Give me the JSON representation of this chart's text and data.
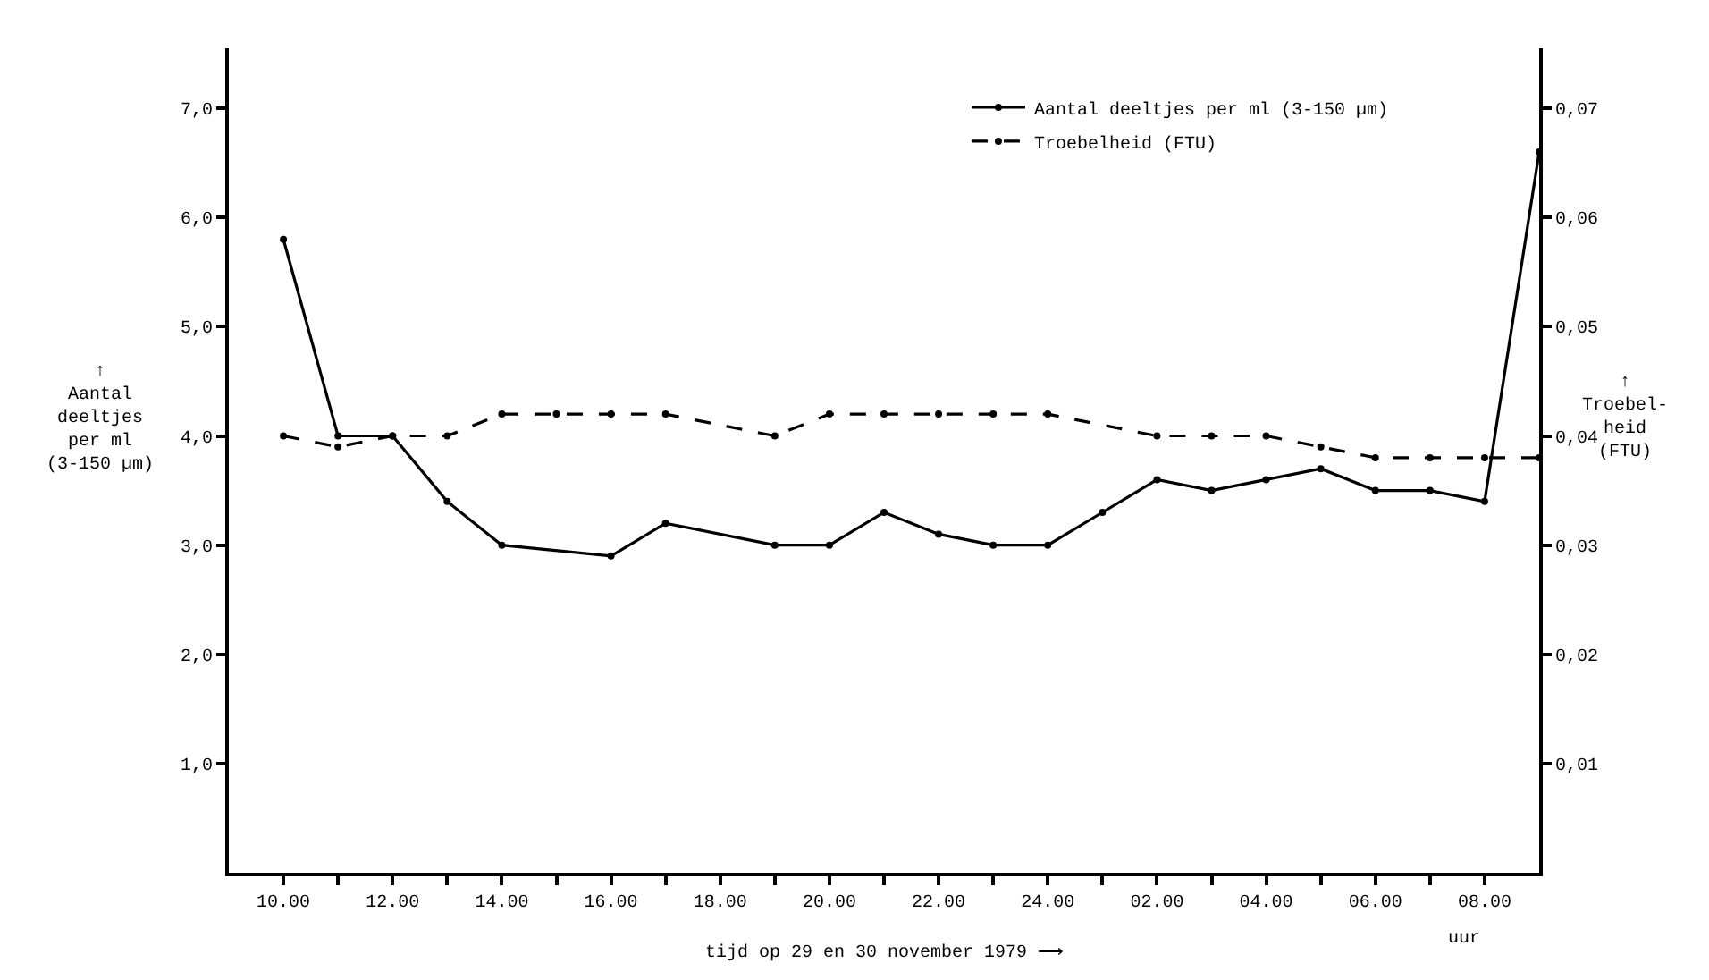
{
  "chart_data": {
    "type": "line",
    "xlabel": "tijd op 29 en 30 november 1979 ⟶",
    "ylabel": "↑\nAantal\ndeeltjes\nper ml\n(3-150 µm)",
    "y2label": "↑\nTroebel-\nheid\n(FTU)",
    "xlim": [
      "1979-11-29T09:00",
      "1979-11-30T09:00"
    ],
    "xticks": [
      {
        "value": "1979-11-29T10:00",
        "label": "10.00"
      },
      {
        "value": "1979-11-29T11:00",
        "label": null
      },
      {
        "value": "1979-11-29T12:00",
        "label": "12.00"
      },
      {
        "value": "1979-11-29T13:00",
        "label": null
      },
      {
        "value": "1979-11-29T14:00",
        "label": "14.00"
      },
      {
        "value": "1979-11-29T15:00",
        "label": null
      },
      {
        "value": "1979-11-29T16:00",
        "label": "16.00"
      },
      {
        "value": "1979-11-29T17:00",
        "label": null
      },
      {
        "value": "1979-11-29T18:00",
        "label": "18.00"
      },
      {
        "value": "1979-11-29T19:00",
        "label": null
      },
      {
        "value": "1979-11-29T20:00",
        "label": "20.00"
      },
      {
        "value": "1979-11-29T21:00",
        "label": null
      },
      {
        "value": "1979-11-29T22:00",
        "label": "22.00"
      },
      {
        "value": "1979-11-29T23:00",
        "label": null
      },
      {
        "value": "1979-11-30T00:00",
        "label": "24.00"
      },
      {
        "value": "1979-11-30T01:00",
        "label": null
      },
      {
        "value": "1979-11-30T02:00",
        "label": "02.00"
      },
      {
        "value": "1979-11-30T03:00",
        "label": null
      },
      {
        "value": "1979-11-30T04:00",
        "label": "04.00"
      },
      {
        "value": "1979-11-30T05:00",
        "label": null
      },
      {
        "value": "1979-11-30T06:00",
        "label": "06.00"
      },
      {
        "value": "1979-11-30T07:00",
        "label": null
      },
      {
        "value": "1979-11-30T08:00",
        "label": "08.00"
      }
    ],
    "ylim": [
      0,
      7.55
    ],
    "yticks": [
      {
        "value": 1,
        "label": "1,0"
      },
      {
        "value": 2,
        "label": "2,0"
      },
      {
        "value": 3,
        "label": "3,0"
      },
      {
        "value": 4,
        "label": "4,0"
      },
      {
        "value": 5,
        "label": "5,0"
      },
      {
        "value": 6,
        "label": "6,0"
      },
      {
        "value": 7,
        "label": "7,0"
      }
    ],
    "y2lim": [
      0,
      0.0755
    ],
    "y2ticks": [
      {
        "value": 0.01,
        "label": "0,01"
      },
      {
        "value": 0.02,
        "label": "0,02"
      },
      {
        "value": 0.03,
        "label": "0,03"
      },
      {
        "value": 0.04,
        "label": "0,04"
      },
      {
        "value": 0.05,
        "label": "0,05"
      },
      {
        "value": 0.06,
        "label": "0,06"
      },
      {
        "value": 0.07,
        "label": "0,07"
      }
    ],
    "series": [
      {
        "name": "Aantal deeltjes per ml (3-150 µm)",
        "color": "#000000",
        "line_style": "solid",
        "x": [
          "1979-11-29T10:00",
          "1979-11-29T11:00",
          "1979-11-29T12:00",
          "1979-11-29T13:00",
          "1979-11-29T14:00",
          "1979-11-29T16:00",
          "1979-11-29T17:00",
          "1979-11-29T19:00",
          "1979-11-29T20:00",
          "1979-11-29T21:00",
          "1979-11-29T22:00",
          "1979-11-29T23:00",
          "1979-11-30T00:00",
          "1979-11-30T01:00",
          "1979-11-30T02:00",
          "1979-11-30T03:00",
          "1979-11-30T04:00",
          "1979-11-30T05:00",
          "1979-11-30T06:00",
          "1979-11-30T07:00",
          "1979-11-30T08:00",
          "1979-11-30T09:00"
        ],
        "values": [
          5.8,
          4.0,
          4.0,
          3.4,
          3.0,
          2.9,
          3.2,
          3.0,
          3.0,
          3.3,
          3.1,
          3.0,
          3.0,
          3.3,
          3.6,
          3.5,
          3.6,
          3.7,
          3.5,
          3.5,
          3.4,
          6.6
        ]
      },
      {
        "name": "Troebelheid (FTU)",
        "color": "#000000",
        "line_style": "dashed",
        "axis": "y2",
        "x": [
          "1979-11-29T10:00",
          "1979-11-29T11:00",
          "1979-11-29T12:00",
          "1979-11-29T13:00",
          "1979-11-29T14:00",
          "1979-11-29T15:00",
          "1979-11-29T16:00",
          "1979-11-29T17:00",
          "1979-11-29T19:00",
          "1979-11-29T20:00",
          "1979-11-29T21:00",
          "1979-11-29T22:00",
          "1979-11-29T23:00",
          "1979-11-30T00:00",
          "1979-11-30T02:00",
          "1979-11-30T03:00",
          "1979-11-30T04:00",
          "1979-11-30T05:00",
          "1979-11-30T06:00",
          "1979-11-30T07:00",
          "1979-11-30T08:00",
          "1979-11-30T09:00"
        ],
        "values": [
          0.04,
          0.039,
          0.04,
          0.04,
          0.042,
          0.042,
          0.042,
          0.042,
          0.04,
          0.042,
          0.042,
          0.042,
          0.042,
          0.042,
          0.04,
          0.04,
          0.04,
          0.039,
          0.038,
          0.038,
          0.038,
          0.038
        ]
      }
    ],
    "annotations": [
      "uur"
    ],
    "marker": "circle",
    "legend": "top right"
  }
}
